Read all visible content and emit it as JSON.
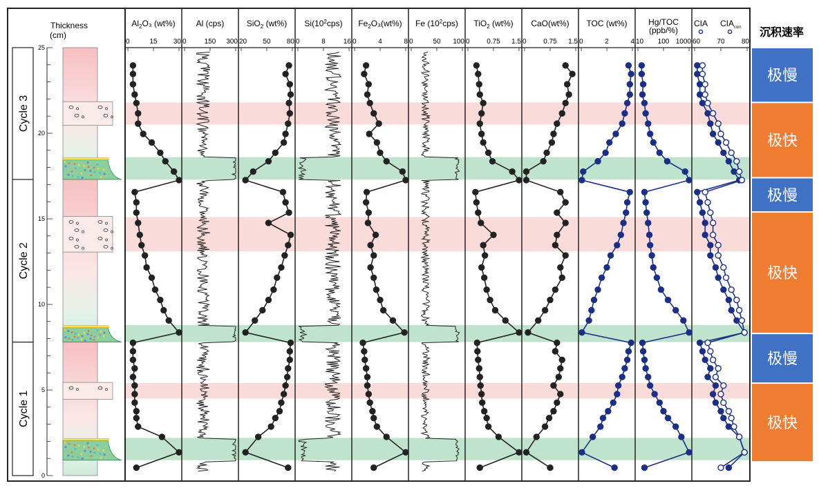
{
  "chart_data": {
    "type": "line",
    "thickness_axis": {
      "title_line1": "Thickness",
      "title_line2": "(cm)",
      "range": [
        0,
        25
      ],
      "ticks": [
        0,
        5,
        10,
        15,
        20,
        25
      ]
    },
    "cycles": [
      {
        "label": "Cycle 1",
        "bottom": 0,
        "top": 7.8
      },
      {
        "label": "Cycle 2",
        "bottom": 7.8,
        "top": 17.3
      },
      {
        "label": "Cycle 3",
        "bottom": 17.3,
        "top": 25
      }
    ],
    "bands": [
      {
        "kind": "green",
        "from": 0.9,
        "to": 2.2
      },
      {
        "kind": "pink",
        "from": 4.5,
        "to": 5.4
      },
      {
        "kind": "green",
        "from": 7.8,
        "to": 8.8
      },
      {
        "kind": "pink",
        "from": 13.1,
        "to": 15.1
      },
      {
        "kind": "green",
        "from": 17.3,
        "to": 18.6
      },
      {
        "kind": "pink",
        "from": 20.5,
        "to": 21.8
      }
    ],
    "depths": [
      0.5,
      1.4,
      2.3,
      2.9,
      3.4,
      3.8,
      4.3,
      4.8,
      5.3,
      5.8,
      6.3,
      6.8,
      7.3,
      7.8,
      8.4,
      9.1,
      9.7,
      10.3,
      10.9,
      11.6,
      12.2,
      12.9,
      13.5,
      14.1,
      14.8,
      15.4,
      16.0,
      16.6,
      17.3,
      17.8,
      18.4,
      18.9,
      19.5,
      20.0,
      20.6,
      21.2,
      21.8,
      22.3,
      22.9,
      23.5,
      24.0
    ],
    "panels": [
      {
        "title": "Al₂O₃ (wt%)",
        "range": [
          0,
          30
        ],
        "ticks": [
          "0",
          "15",
          "30"
        ],
        "color": "#222222",
        "marker": "filled",
        "values": [
          5,
          30,
          20,
          6,
          5,
          5,
          4,
          4,
          4,
          3,
          4,
          3,
          3,
          3,
          30,
          24,
          21,
          19,
          16,
          14,
          11,
          10,
          8,
          7,
          6,
          5,
          5,
          4,
          30,
          27,
          22,
          19,
          14,
          9,
          6,
          6,
          5,
          4,
          3,
          3,
          3
        ]
      },
      {
        "title": "SiO₂ (wt%)",
        "range": [
          20,
          80
        ],
        "ticks": [
          "20",
          "50",
          "80"
        ],
        "color": "#222222",
        "marker": "filled",
        "values": [
          75,
          25,
          40,
          55,
          60,
          65,
          67,
          70,
          72,
          74,
          75,
          77,
          77,
          78,
          25,
          36,
          45,
          52,
          58,
          62,
          67,
          71,
          75,
          78,
          52,
          76,
          72,
          69,
          25,
          34,
          52,
          60,
          70,
          72,
          75,
          77,
          76,
          78,
          77,
          72,
          76
        ]
      },
      {
        "title": "Fe₂O₃(wt%)",
        "range": [
          0,
          8
        ],
        "ticks": [
          "0",
          "4",
          "8"
        ],
        "color": "#222222",
        "marker": "filled",
        "values": [
          3,
          8,
          5,
          3.5,
          3,
          2.8,
          2.4,
          2.2,
          2,
          2,
          1.8,
          1.6,
          1.5,
          1.3,
          7.8,
          6,
          4.5,
          4,
          3.4,
          3,
          2.5,
          3,
          2.5,
          3.3,
          2.1,
          2.2,
          1.8,
          1.9,
          8,
          7.5,
          5,
          4,
          3.5,
          2.3,
          3.8,
          3,
          2.4,
          2,
          2.2,
          1.5,
          1.8
        ]
      },
      {
        "title": "TiO₂ (wt%)",
        "range": [
          0,
          1.5
        ],
        "ticks": [
          "0",
          "0.75",
          "1.5"
        ],
        "color": "#222222",
        "marker": "filled",
        "values": [
          0.35,
          1.5,
          0.9,
          0.6,
          0.55,
          0.48,
          0.42,
          0.4,
          0.37,
          0.35,
          0.33,
          0.3,
          0.28,
          0.27,
          1.5,
          1.1,
          0.8,
          0.65,
          0.55,
          0.48,
          0.4,
          0.5,
          0.45,
          0.75,
          0.38,
          0.3,
          0.25,
          0.22,
          1.5,
          1.3,
          0.72,
          0.6,
          0.45,
          0.4,
          0.35,
          0.4,
          0.45,
          0.35,
          0.33,
          0.3,
          0.25
        ]
      },
      {
        "title": "CaO(wt%)",
        "range": [
          0,
          1.5
        ],
        "ticks": [
          "0",
          "0.75",
          "1.5"
        ],
        "color": "#222222",
        "marker": "filled",
        "values": [
          0.75,
          0.05,
          0.35,
          0.6,
          0.72,
          0.85,
          0.95,
          1.05,
          0.85,
          1.0,
          1.05,
          1.1,
          0.9,
          0.95,
          0.1,
          0.4,
          0.6,
          0.75,
          0.9,
          1.1,
          1.05,
          1.2,
          0.9,
          0.95,
          1.2,
          0.95,
          1.2,
          1.05,
          0.05,
          0.05,
          0.55,
          0.65,
          0.8,
          0.85,
          0.95,
          1.1,
          1.2,
          1.3,
          1.25,
          1.4,
          1.2
        ]
      },
      {
        "title": "TOC (wt%)",
        "range": [
          0,
          4
        ],
        "ticks": [
          "0",
          "2",
          "4"
        ],
        "color": "#1c2f86",
        "marker": "filled",
        "values": [
          2.6,
          0.05,
          0.9,
          1.5,
          1.7,
          2.1,
          2.5,
          2.8,
          2.9,
          3.2,
          3.4,
          3.6,
          3.7,
          3.9,
          0.05,
          0.6,
          0.8,
          1.0,
          1.3,
          1.6,
          2.0,
          2.3,
          2.8,
          3.1,
          3.3,
          3.5,
          3.6,
          3.8,
          0.05,
          0.15,
          1.3,
          1.9,
          2.2,
          2.7,
          3.2,
          3.4,
          3.6,
          3.8,
          3.8,
          3.9,
          3.7
        ]
      },
      {
        "title_line1": "Hg/TOC",
        "title_line2": "(ppb/%)",
        "scale": "log",
        "range": [
          10,
          1000
        ],
        "ticks": [
          "10",
          "100",
          "1000"
        ],
        "color": "#1c2f86",
        "marker": "filled",
        "values": [
          18,
          1000,
          500,
          300,
          150,
          100,
          70,
          45,
          30,
          25,
          20,
          18,
          16,
          15,
          1000,
          600,
          300,
          150,
          80,
          55,
          40,
          35,
          30,
          28,
          25,
          22,
          20,
          18,
          1000,
          700,
          140,
          70,
          40,
          30,
          25,
          20,
          18,
          15,
          16,
          14,
          14
        ]
      },
      {
        "title": "CIA",
        "title_b": "CIAcorr.",
        "range": [
          60,
          80
        ],
        "ticks": [
          "60",
          "70",
          "80"
        ],
        "marker": "pair",
        "color": "#1c2f86",
        "values": [
          73,
          79,
          77,
          73,
          71,
          70,
          68,
          67,
          68,
          65,
          66,
          64,
          63,
          62,
          79,
          76,
          74,
          73,
          71,
          69,
          68,
          66,
          66,
          64,
          64,
          63,
          62,
          61,
          77,
          75,
          73,
          71,
          69,
          67,
          66,
          65,
          63,
          62,
          62,
          61,
          61
        ],
        "values_b": [
          70,
          79,
          77,
          75,
          74,
          73,
          71,
          70,
          71,
          68,
          69,
          67,
          66,
          65,
          79,
          78,
          77,
          76,
          74,
          72,
          71,
          69,
          69,
          67,
          67,
          66,
          65,
          64,
          78,
          77,
          76,
          74,
          72,
          70,
          69,
          67,
          65,
          64,
          64,
          63,
          63
        ]
      }
    ],
    "signal_panels": [
      {
        "title": "Al (cps)",
        "range": [
          0,
          300
        ],
        "ticks": [
          "0",
          "150",
          "300"
        ],
        "color": "#222222",
        "base": 110,
        "noise": 40,
        "peak": 300
      },
      {
        "title": "Si(10²cps)",
        "range": [
          0,
          16
        ],
        "ticks": [
          "0",
          "8",
          "16"
        ],
        "color": "#222222",
        "base": 11,
        "noise": 2.5,
        "peak": 1.5
      },
      {
        "title": "Fe (10²cps)",
        "range": [
          0,
          100
        ],
        "ticks": [
          "0",
          "50",
          "100"
        ],
        "color": "#222222",
        "base": 28,
        "noise": 8,
        "peak": 90
      }
    ],
    "rate_column": {
      "header": "沉积速率",
      "blocks": [
        {
          "label": "极快",
          "from": 0.8,
          "to": 5.4,
          "color": "#ee7d31"
        },
        {
          "label": "极慢",
          "from": 5.4,
          "to": 8.3,
          "color": "#3f72c4"
        },
        {
          "label": "极快",
          "from": 8.3,
          "to": 15.4,
          "color": "#ee7d31"
        },
        {
          "label": "极慢",
          "from": 15.4,
          "to": 17.4,
          "color": "#3f72c4"
        },
        {
          "label": "极快",
          "from": 17.4,
          "to": 21.8,
          "color": "#ee7d31"
        },
        {
          "label": "极慢",
          "from": 21.8,
          "to": 25,
          "color": "#3f72c4"
        }
      ]
    }
  }
}
